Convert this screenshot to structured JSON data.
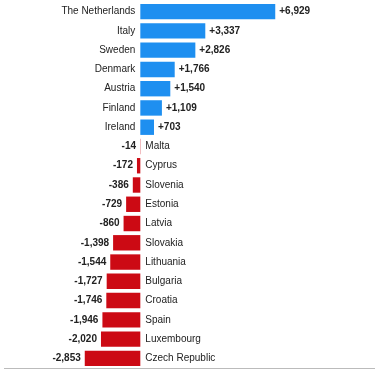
{
  "chart_data": {
    "type": "bar",
    "orientation": "horizontal",
    "categories": [
      "The Netherlands",
      "Italy",
      "Sweden",
      "Denmark",
      "Austria",
      "Finland",
      "Ireland",
      "Malta",
      "Cyprus",
      "Slovenia",
      "Estonia",
      "Latvia",
      "Slovakia",
      "Lithuania",
      "Bulgaria",
      "Croatia",
      "Spain",
      "Luxembourg",
      "Czech Republic"
    ],
    "values": [
      6929,
      3337,
      2826,
      1766,
      1540,
      1109,
      703,
      -14,
      -172,
      -386,
      -729,
      -860,
      -1398,
      -1544,
      -1727,
      -1746,
      -1946,
      -2020,
      -2853
    ],
    "value_labels": [
      "+6,929",
      "+3,337",
      "+2,826",
      "+1,766",
      "+1,540",
      "+1,109",
      "+703",
      "-14",
      "-172",
      "-386",
      "-729",
      "-860",
      "-1,398",
      "-1,544",
      "-1,727",
      "-1,746",
      "-1,946",
      "-2,020",
      "-2,853"
    ],
    "colors": [
      "#1e8ff0",
      "#1e8ff0",
      "#1e8ff0",
      "#1e8ff0",
      "#1e8ff0",
      "#1e8ff0",
      "#1e8ff0",
      "#cc0a14",
      "#cc0a14",
      "#cc0a14",
      "#cc0a14",
      "#cc0a14",
      "#cc0a14",
      "#cc0a14",
      "#cc0a14",
      "#cc0a14",
      "#cc0a14",
      "#cc0a14",
      "#cc0a14"
    ],
    "xlim": [
      -7000,
      12000
    ],
    "data_labels": true,
    "tick_labels": false,
    "grid": false
  }
}
